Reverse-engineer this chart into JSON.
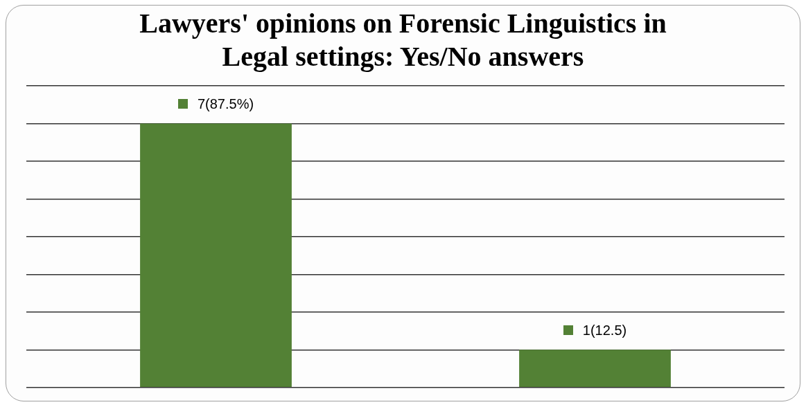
{
  "chart_data": {
    "type": "bar",
    "title": "Lawyers' opinions on Forensic Linguistics in Legal settings: Yes/No answers",
    "categories": [
      null,
      null
    ],
    "values": [
      7,
      1
    ],
    "value_labels": [
      "7(87.5%)",
      "1(12.5)"
    ],
    "color": "#538135",
    "ylim": [
      0,
      8
    ],
    "yticks": [
      {
        "value": 0,
        "label": null
      },
      {
        "value": 1,
        "label": null
      },
      {
        "value": 2,
        "label": null
      },
      {
        "value": 3,
        "label": null
      },
      {
        "value": 4,
        "label": null
      },
      {
        "value": 5,
        "label": null
      },
      {
        "value": 6,
        "label": null
      },
      {
        "value": 7,
        "label": null
      },
      {
        "value": 8,
        "label": null
      }
    ],
    "grid": "y",
    "legend": false
  }
}
